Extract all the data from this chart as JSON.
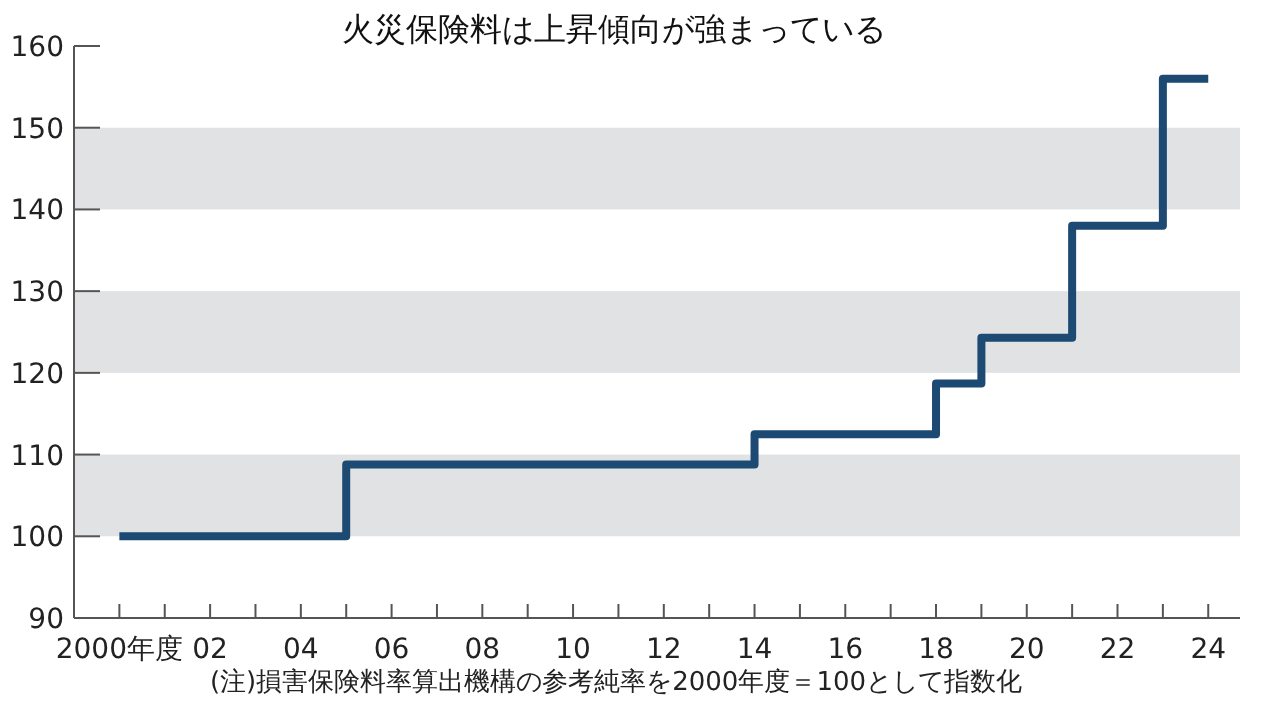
{
  "chart_data": {
    "type": "step",
    "title": "火災保険料は上昇傾向が強まっている",
    "annotations": [
      "(注)損害保険料率算出機構の参考純率を2000年度＝100として指数化"
    ],
    "series": [
      {
        "color": "#1d4a72",
        "x": [
          2000,
          2005,
          2014,
          2018,
          2019,
          2021,
          2023,
          2024
        ],
        "values": [
          100,
          108.8,
          112.5,
          118.7,
          124.3,
          138,
          156,
          156
        ]
      }
    ],
    "xlim": [
      1999,
      2024.7
    ],
    "xticks": [
      {
        "value": 2000,
        "label": "2000年度"
      },
      {
        "value": 2001,
        "label": null
      },
      {
        "value": 2002,
        "label": "02"
      },
      {
        "value": 2003,
        "label": null
      },
      {
        "value": 2004,
        "label": "04"
      },
      {
        "value": 2005,
        "label": null
      },
      {
        "value": 2006,
        "label": "06"
      },
      {
        "value": 2007,
        "label": null
      },
      {
        "value": 2008,
        "label": "08"
      },
      {
        "value": 2009,
        "label": null
      },
      {
        "value": 2010,
        "label": "10"
      },
      {
        "value": 2011,
        "label": null
      },
      {
        "value": 2012,
        "label": "12"
      },
      {
        "value": 2013,
        "label": null
      },
      {
        "value": 2014,
        "label": "14"
      },
      {
        "value": 2015,
        "label": null
      },
      {
        "value": 2016,
        "label": "16"
      },
      {
        "value": 2017,
        "label": null
      },
      {
        "value": 2018,
        "label": "18"
      },
      {
        "value": 2019,
        "label": null
      },
      {
        "value": 2020,
        "label": "20"
      },
      {
        "value": 2021,
        "label": null
      },
      {
        "value": 2022,
        "label": "22"
      },
      {
        "value": 2023,
        "label": null
      },
      {
        "value": 2024,
        "label": "24"
      }
    ],
    "ylim": [
      90,
      160
    ],
    "yticks": [
      90,
      100,
      110,
      120,
      130,
      140,
      150,
      160
    ],
    "bands": [
      {
        "axis": "y",
        "from": 100,
        "to": 110,
        "color": "#e1e2e4"
      },
      {
        "axis": "y",
        "from": 120,
        "to": 130,
        "color": "#e1e2e4"
      },
      {
        "axis": "y",
        "from": 140,
        "to": 150,
        "color": "#e1e2e4"
      }
    ]
  }
}
